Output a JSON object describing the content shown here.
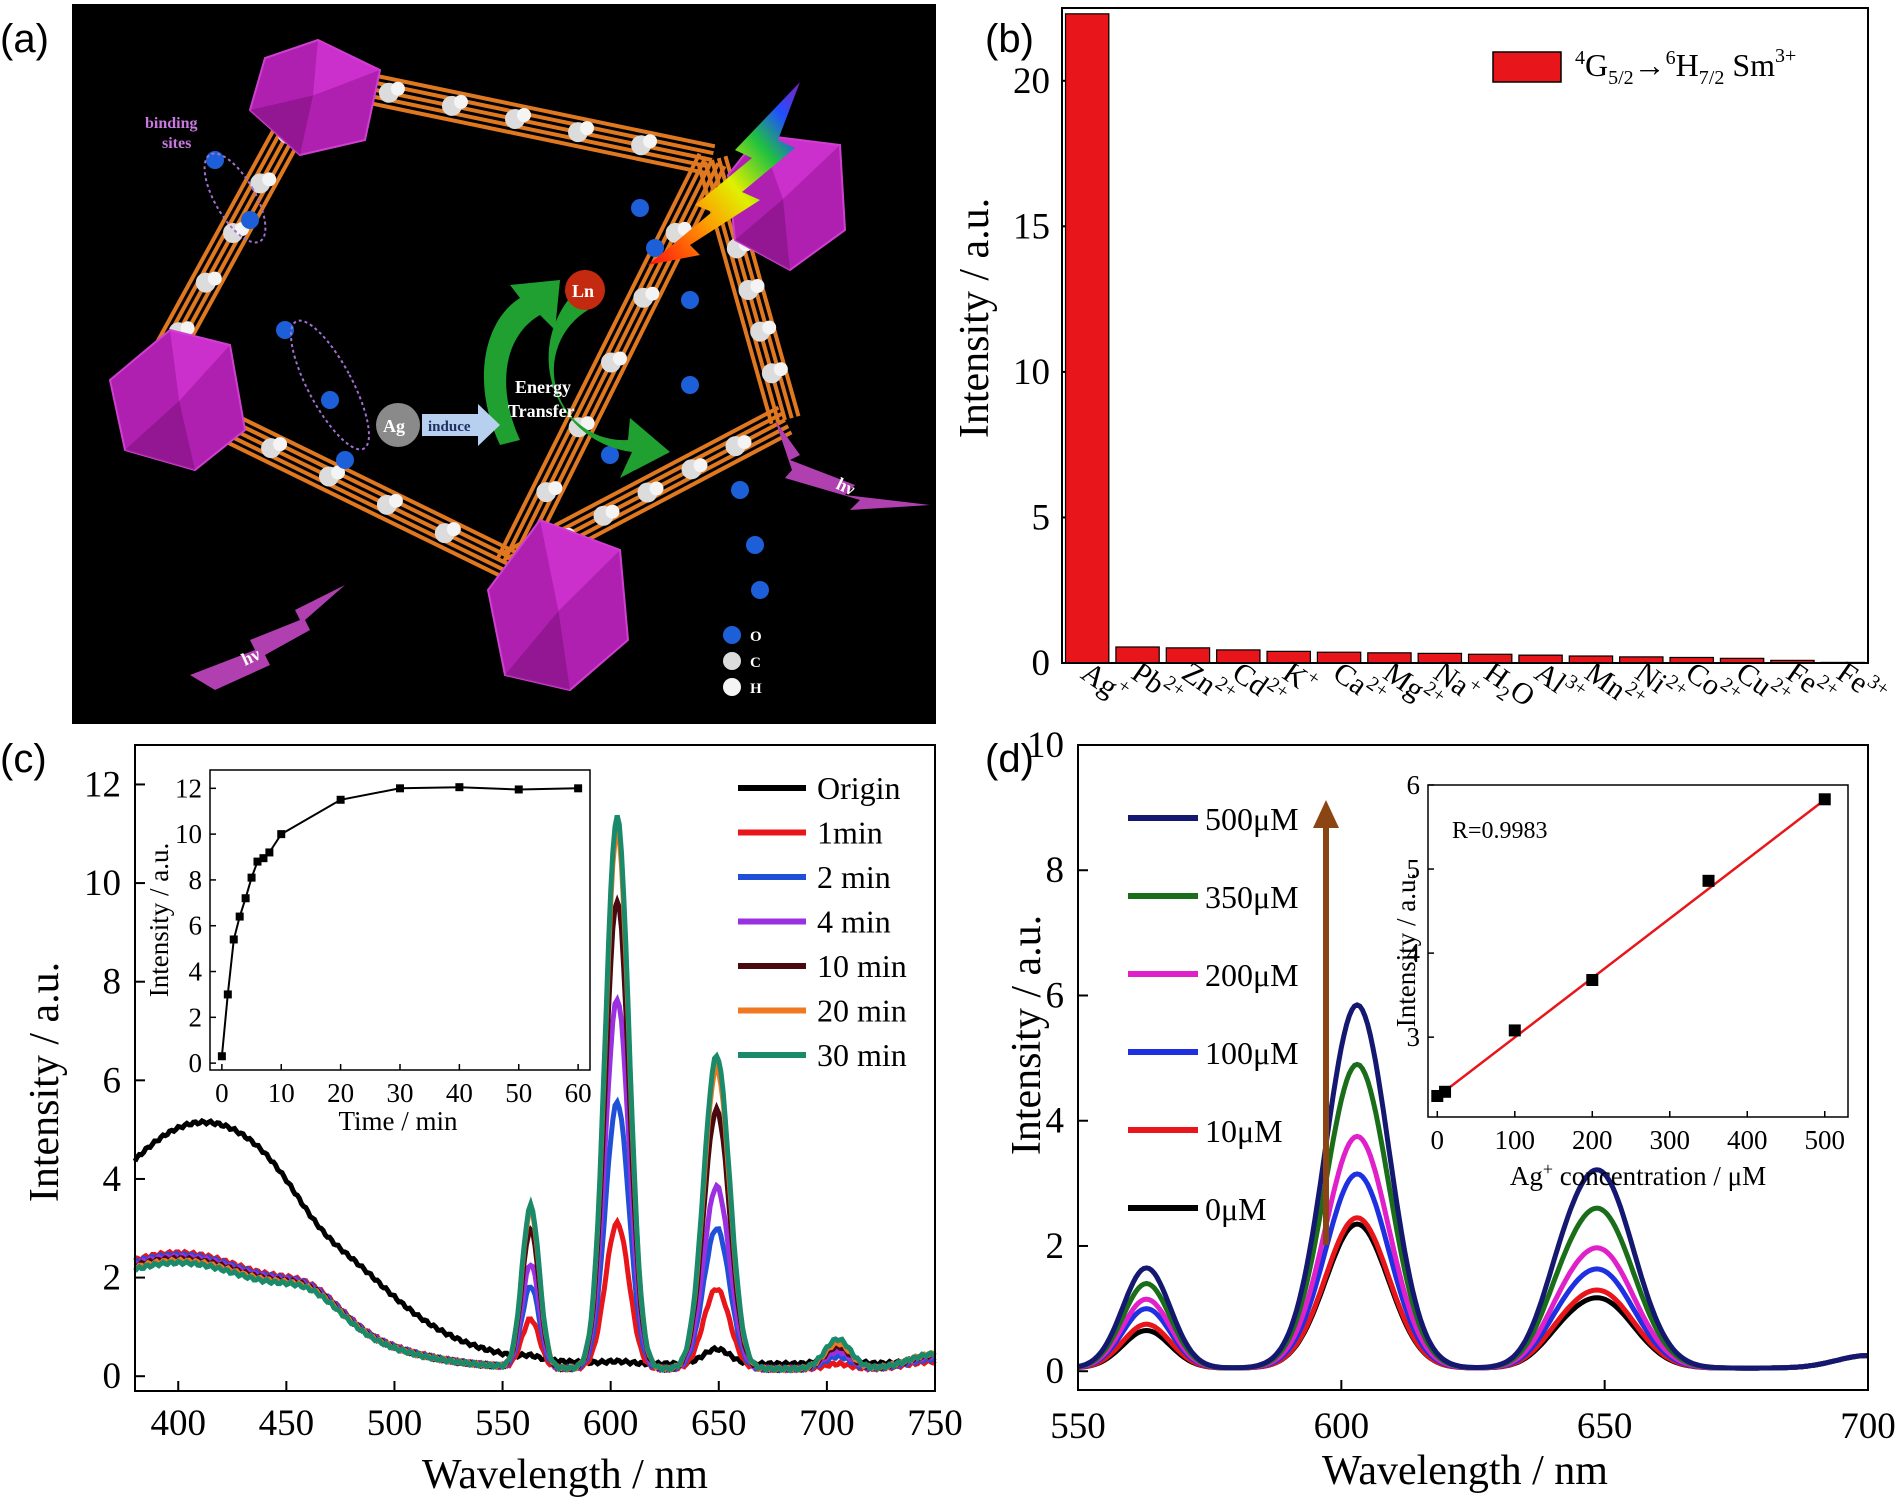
{
  "panels": {
    "a": {
      "letter": "(a)",
      "labels": {
        "binding_sites_line1": "binding",
        "binding_sites_line2": "sites",
        "ln": "Ln",
        "ag": "Ag",
        "induce": "induce",
        "energy_line1": "Energy",
        "energy_line2": "Transfer",
        "hv1": "hν",
        "hv2": "hν",
        "legend_o": "O",
        "legend_c": "C",
        "legend_h": "H"
      },
      "colors": {
        "background": "#000000",
        "polyhedron": "#b020b0",
        "linker": "#e07820",
        "oxygen": "#1c5fd8",
        "carbon": "#dcdcdc",
        "arrow_green": "#20a030",
        "hv_arrow": "#b040b0"
      }
    },
    "b": {
      "letter": "(b)"
    },
    "c": {
      "letter": "(c)"
    },
    "d": {
      "letter": "(d)"
    }
  },
  "chart_data": [
    {
      "id": "b",
      "type": "bar",
      "categories": [
        "Ag+",
        "Pb2+",
        "Zn2+",
        "Cd2+",
        "K+",
        "Ca2+",
        "Mg2+",
        "Na+",
        "H2O",
        "Al3+",
        "Mn2+",
        "Ni2+",
        "Co2+",
        "Cu2+",
        "Fe2+",
        "Fe3+"
      ],
      "category_labels": [
        {
          "base": "Ag",
          "sup": "+"
        },
        {
          "base": "Pb",
          "sup": "2+"
        },
        {
          "base": "Zn",
          "sup": "2+"
        },
        {
          "base": "Cd",
          "sup": "2+"
        },
        {
          "base": "K",
          "sup": "+"
        },
        {
          "base": "Ca",
          "sup": "2+"
        },
        {
          "base": "Mg",
          "sup": "2+"
        },
        {
          "base": "Na",
          "sup": "+"
        },
        {
          "base": "H",
          "sub": "2",
          "tail": "O"
        },
        {
          "base": "Al",
          "sup": "3+"
        },
        {
          "base": "Mn",
          "sup": "2+"
        },
        {
          "base": "Ni",
          "sup": "2+"
        },
        {
          "base": "Co",
          "sup": "2+"
        },
        {
          "base": "Cu",
          "sup": "2+"
        },
        {
          "base": "Fe",
          "sup": "2+"
        },
        {
          "base": "Fe",
          "sup": "3+"
        }
      ],
      "values": [
        22.3,
        0.55,
        0.52,
        0.45,
        0.4,
        0.37,
        0.35,
        0.33,
        0.3,
        0.27,
        0.24,
        0.21,
        0.19,
        0.16,
        0.09,
        0.02
      ],
      "ylabel": "Intensity / a.u.",
      "ylim": [
        0,
        22.5
      ],
      "yticks": [
        "0",
        "5",
        "10",
        "15",
        "20"
      ],
      "bar_color": "#e8161a",
      "legend": {
        "placement": "top-right",
        "entry": {
          "p1": "4",
          "p2": "G",
          "p3": "5/2",
          "p4": "→",
          "p5": "6",
          "p6": "H",
          "p7": "7/2",
          "p8": " Sm",
          "p9": "3+"
        }
      }
    },
    {
      "id": "c",
      "type": "line",
      "xlabel": "Wavelength / nm",
      "ylabel": "Intensity / a.u.",
      "xlim": [
        380,
        750
      ],
      "ylim": [
        -0.3,
        12.8
      ],
      "xticks": [
        "400",
        "450",
        "500",
        "550",
        "600",
        "650",
        "700",
        "750"
      ],
      "yticks": [
        "0",
        "2",
        "4",
        "6",
        "8",
        "10",
        "12"
      ],
      "legend_placement": "top-right",
      "series": [
        {
          "name": "Origin",
          "color": "#000000",
          "peaks": [
            0.06,
            0.04,
            0.3,
            0.22,
            0.08
          ]
        },
        {
          "name": "1min",
          "color": "#e8161a",
          "peaks": [
            0.98,
            2.95,
            1.62,
            0.1,
            0.15
          ]
        },
        {
          "name": "2 min",
          "color": "#2050d8",
          "peaks": [
            1.65,
            5.4,
            2.85,
            0.25,
            0.2
          ]
        },
        {
          "name": "4 min",
          "color": "#9b30e0",
          "peaks": [
            2.1,
            7.5,
            3.7,
            0.35,
            0.25
          ]
        },
        {
          "name": "10 min",
          "color": "#4a0810",
          "peaks": [
            2.8,
            9.5,
            5.25,
            0.45,
            0.28
          ]
        },
        {
          "name": "20 min",
          "color": "#f07820",
          "peaks": [
            3.2,
            10.9,
            6.1,
            0.52,
            0.3
          ]
        },
        {
          "name": "30 min",
          "color": "#1a8a6a",
          "peaks": [
            3.28,
            11.2,
            6.35,
            0.6,
            0.3
          ]
        }
      ],
      "origin_broadband": {
        "center_max": 4.9,
        "shoulder": 2.95
      },
      "inset": {
        "type": "line",
        "xlabel": "Time / min",
        "ylabel": "Intensity / a.u.",
        "xlim": [
          -2,
          62
        ],
        "ylim": [
          -0.3,
          12.8
        ],
        "xticks": [
          "0",
          "10",
          "20",
          "30",
          "40",
          "50",
          "60"
        ],
        "yticks": [
          "0",
          "2",
          "4",
          "6",
          "8",
          "10",
          "12"
        ],
        "x": [
          0,
          1,
          2,
          3,
          4,
          5,
          6,
          7,
          8,
          10,
          20,
          30,
          40,
          50,
          60
        ],
        "y": [
          0.3,
          3.0,
          5.4,
          6.4,
          7.2,
          8.1,
          8.8,
          8.95,
          9.2,
          10.0,
          11.5,
          12.0,
          12.05,
          11.95,
          12.0
        ]
      }
    },
    {
      "id": "d",
      "type": "line",
      "xlabel": "Wavelength / nm",
      "ylabel": "Intensity / a.u.",
      "xlim": [
        550,
        700
      ],
      "ylim": [
        -0.3,
        10.0
      ],
      "xticks": [
        "550",
        "600",
        "650",
        "700"
      ],
      "yticks": [
        "0",
        "2",
        "4",
        "6",
        "8",
        "10"
      ],
      "legend_placement": "left",
      "series": [
        {
          "name": "500μM",
          "color": "#141870",
          "peaks": [
            1.6,
            5.8,
            3.1
          ]
        },
        {
          "name": "350μM",
          "color": "#1a6e1a",
          "peaks": [
            1.35,
            4.85,
            2.5
          ]
        },
        {
          "name": "200μM",
          "color": "#e020c8",
          "peaks": [
            1.1,
            3.7,
            1.88
          ]
        },
        {
          "name": "100μM",
          "color": "#1e30e0",
          "peaks": [
            0.95,
            3.1,
            1.55
          ]
        },
        {
          "name": "10μM",
          "color": "#e8161a",
          "peaks": [
            0.7,
            2.4,
            1.22
          ]
        },
        {
          "name": "0μM",
          "color": "#000000",
          "peaks": [
            0.6,
            2.3,
            1.1
          ]
        }
      ],
      "arrow_color": "#8b4513",
      "inset": {
        "type": "scatter",
        "xlabel": "Ag+ concentration / μM",
        "xlabel_parts": {
          "a": "Ag",
          "b": "+",
          "c": " concentration / μM"
        },
        "ylabel": "Intensity / a.u.",
        "annotation": "R=0.9983",
        "xlim": [
          -12,
          530
        ],
        "ylim": [
          2.05,
          6.0
        ],
        "xticks": [
          "0",
          "100",
          "200",
          "300",
          "400",
          "500"
        ],
        "yticks": [
          "3",
          "4",
          "5",
          "6"
        ],
        "x": [
          0,
          10,
          100,
          200,
          350,
          500
        ],
        "y": [
          2.3,
          2.35,
          3.08,
          3.68,
          4.86,
          5.83
        ],
        "fit": {
          "slope": 0.00707,
          "intercept": 2.29,
          "color": "#e8161a"
        }
      }
    }
  ]
}
